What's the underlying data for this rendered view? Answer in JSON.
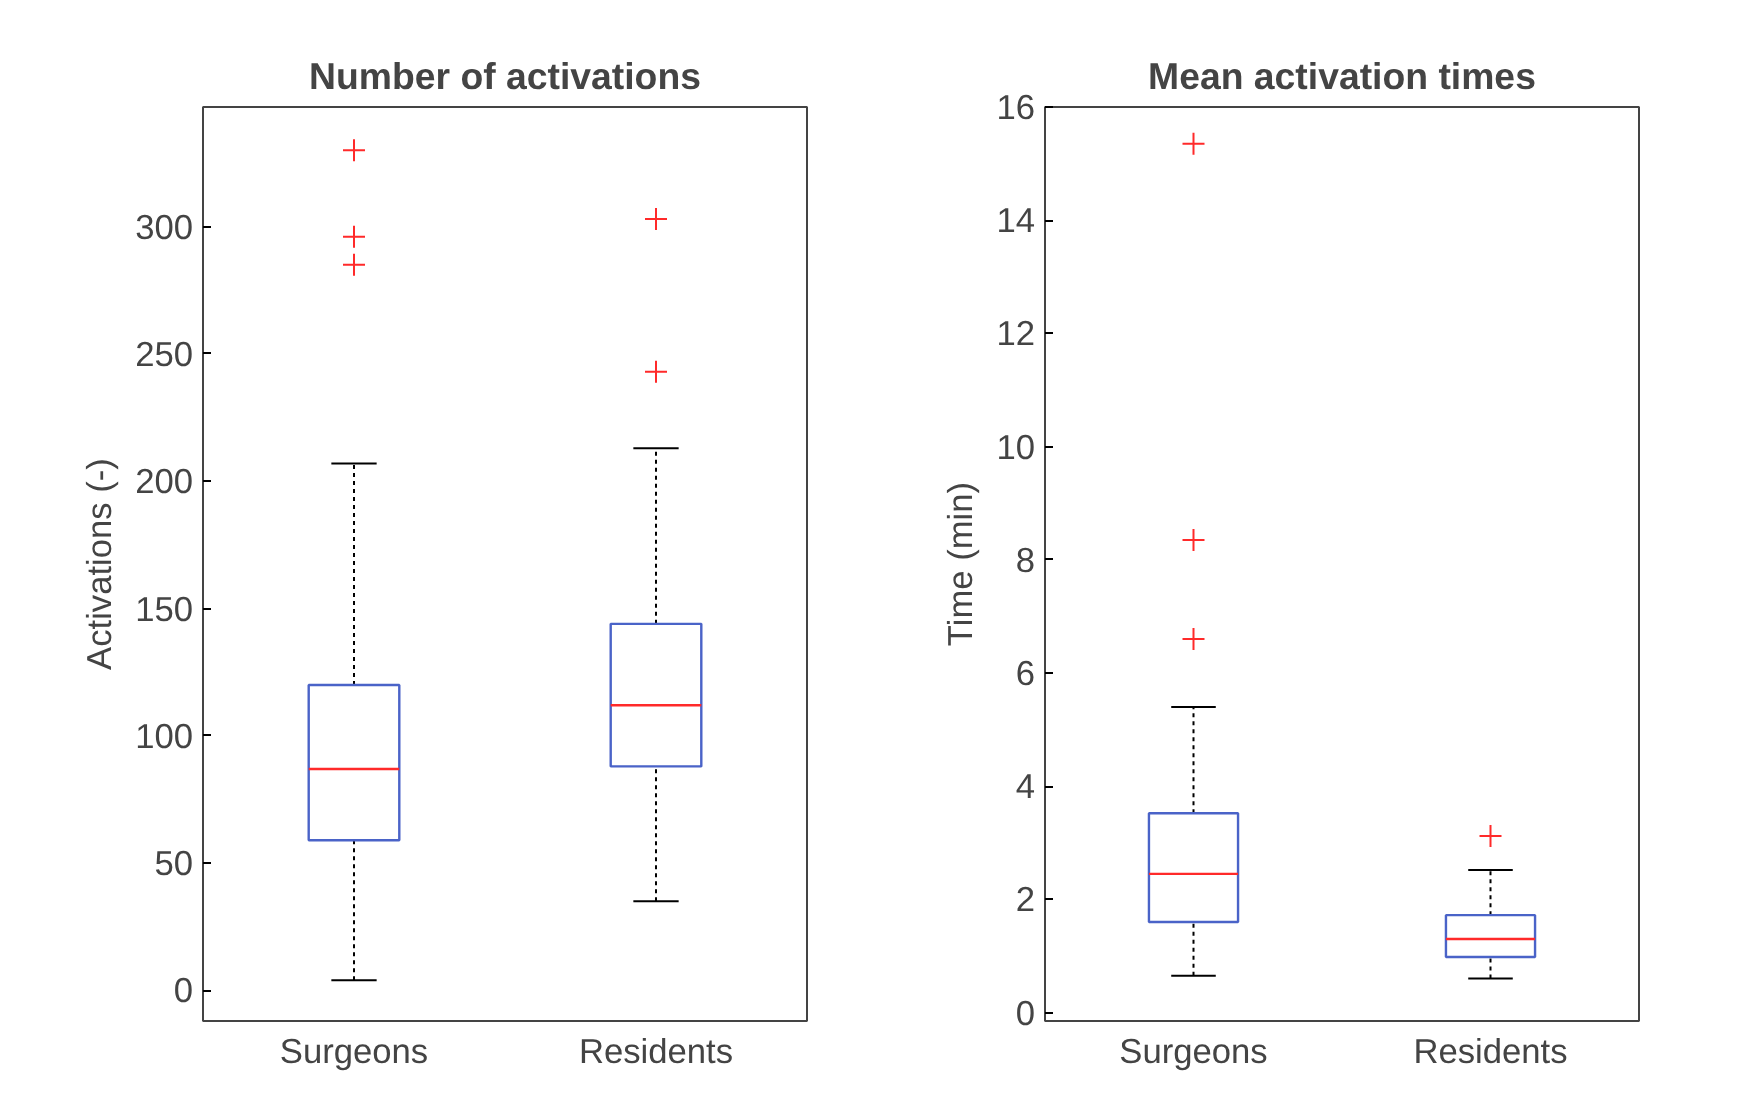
{
  "chart_data": [
    {
      "type": "box",
      "title": "Number of activations",
      "ylabel": "Activations (-)",
      "categories": [
        "Surgeons",
        "Residents"
      ],
      "marker": "cross",
      "grid": false,
      "boxes": [
        {
          "low": 4,
          "q1": 59,
          "median": 87,
          "q3": 120,
          "high": 207,
          "outliers": [
            330,
            296,
            285
          ]
        },
        {
          "low": 35,
          "q1": 88,
          "median": 112,
          "q3": 144,
          "high": 213,
          "outliers": [
            303,
            243
          ]
        }
      ],
      "ylim": [
        -12,
        347
      ],
      "yticks": [
        0,
        50,
        100,
        150,
        200,
        250,
        300
      ]
    },
    {
      "type": "box",
      "title": "Mean activation times",
      "ylabel": "Time (min)",
      "categories": [
        "Surgeons",
        "Residents"
      ],
      "marker": "cross",
      "grid": false,
      "boxes": [
        {
          "low": 0.65,
          "q1": 1.6,
          "median": 2.45,
          "q3": 3.52,
          "high": 5.4,
          "outliers": [
            15.35,
            8.35,
            6.6
          ]
        },
        {
          "low": 0.6,
          "q1": 0.98,
          "median": 1.3,
          "q3": 1.72,
          "high": 2.52,
          "outliers": [
            3.12
          ]
        }
      ],
      "ylim": [
        -0.15,
        16
      ],
      "yticks": [
        0,
        2,
        4,
        6,
        8,
        10,
        12,
        14,
        16
      ]
    }
  ]
}
